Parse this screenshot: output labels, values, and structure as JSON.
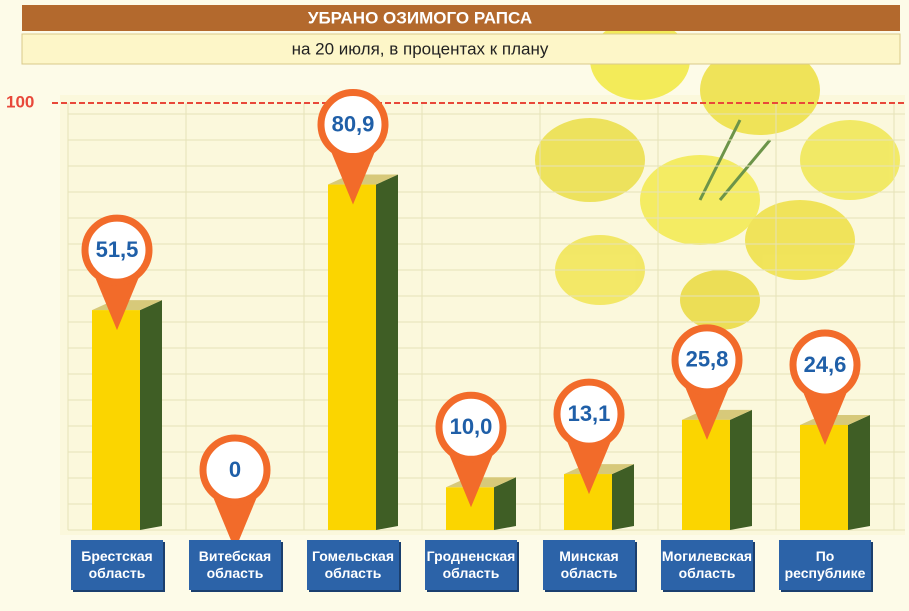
{
  "chart_data": {
    "type": "bar3d",
    "title": "УБРАНО ОЗИМОГО РАПСА",
    "subtitle": "на 20 июля, в процентах к плану",
    "categories": [
      "Брестская область",
      "Витебская область",
      "Гомельская область",
      "Гродненская область",
      "Минская область",
      "Могилевская область",
      "По республике"
    ],
    "values": [
      51.5,
      0,
      80.9,
      10.0,
      13.1,
      25.8,
      24.6
    ],
    "value_labels": [
      "51,5",
      "0",
      "80,9",
      "10,0",
      "13,1",
      "25,8",
      "24,6"
    ],
    "color": "#fbd500",
    "side_color": "#3f5e25",
    "pin_color": "#f26b2a",
    "ylim": [
      0,
      100
    ],
    "yticks": [
      100
    ],
    "grid": true
  }
}
